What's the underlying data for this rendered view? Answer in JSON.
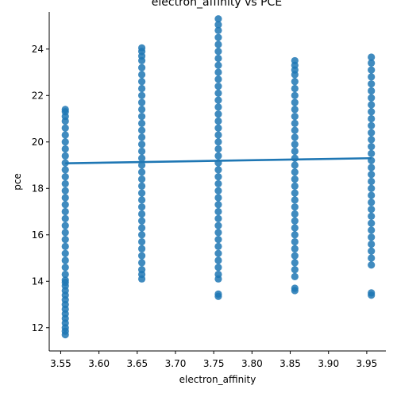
{
  "chart_data": {
    "type": "scatter",
    "title": "electron_affinity vs PCE",
    "xlabel": "electron_affinity",
    "ylabel": "pce",
    "xlim": [
      3.535,
      3.975
    ],
    "ylim": [
      11.0,
      25.6
    ],
    "x_ticks": [
      "3.55",
      "3.60",
      "3.65",
      "3.70",
      "3.75",
      "3.80",
      "3.85",
      "3.90",
      "3.95"
    ],
    "y_ticks": [
      "12",
      "14",
      "16",
      "18",
      "20",
      "22",
      "24"
    ],
    "grid": false,
    "color": "#1f77b4",
    "series": [
      {
        "x": 3.556,
        "y": [
          11.7,
          11.85,
          12.0,
          12.2,
          12.4,
          12.6,
          12.8,
          13.0,
          13.2,
          13.4,
          13.6,
          13.8,
          13.95,
          14.05,
          14.3,
          14.6,
          14.9,
          15.2,
          15.5,
          15.8,
          16.1,
          16.4,
          16.7,
          17.0,
          17.3,
          17.6,
          17.9,
          18.2,
          18.5,
          18.8,
          19.1,
          19.4,
          19.7,
          20.0,
          20.3,
          20.6,
          20.9,
          21.1,
          21.3,
          21.4
        ]
      },
      {
        "x": 3.656,
        "y": [
          14.1,
          14.3,
          14.5,
          14.8,
          15.1,
          15.4,
          15.7,
          16.0,
          16.3,
          16.6,
          16.9,
          17.2,
          17.5,
          17.8,
          18.1,
          18.4,
          18.7,
          19.0,
          19.3,
          19.6,
          19.9,
          20.2,
          20.5,
          20.8,
          21.1,
          21.4,
          21.7,
          22.0,
          22.3,
          22.6,
          22.9,
          23.2,
          23.5,
          23.7,
          23.9,
          24.05
        ]
      },
      {
        "x": 3.756,
        "y": [
          13.35,
          13.45,
          14.1,
          14.3,
          14.6,
          14.9,
          15.2,
          15.5,
          15.8,
          16.1,
          16.4,
          16.7,
          17.0,
          17.3,
          17.6,
          17.9,
          18.2,
          18.5,
          18.8,
          19.1,
          19.4,
          19.7,
          20.0,
          20.3,
          20.6,
          20.9,
          21.2,
          21.5,
          21.8,
          22.1,
          22.4,
          22.7,
          23.0,
          23.3,
          23.6,
          23.9,
          24.2,
          24.5,
          24.8,
          25.05,
          25.3
        ]
      },
      {
        "x": 3.856,
        "y": [
          13.6,
          13.7,
          14.2,
          14.5,
          14.8,
          15.1,
          15.4,
          15.7,
          16.0,
          16.3,
          16.6,
          16.9,
          17.2,
          17.5,
          17.8,
          18.1,
          18.4,
          18.7,
          19.0,
          19.3,
          19.6,
          19.9,
          20.2,
          20.5,
          20.8,
          21.1,
          21.4,
          21.7,
          22.0,
          22.3,
          22.6,
          22.9,
          23.1,
          23.3,
          23.5
        ]
      },
      {
        "x": 3.956,
        "y": [
          13.4,
          13.5,
          14.7,
          15.0,
          15.3,
          15.6,
          15.9,
          16.2,
          16.5,
          16.8,
          17.1,
          17.4,
          17.7,
          18.0,
          18.3,
          18.6,
          18.9,
          19.2,
          19.5,
          19.8,
          20.1,
          20.4,
          20.7,
          21.0,
          21.3,
          21.6,
          21.9,
          22.2,
          22.5,
          22.8,
          23.1,
          23.4,
          23.65
        ]
      }
    ],
    "fit_line": {
      "x": [
        3.556,
        3.956
      ],
      "y": [
        19.08,
        19.3
      ]
    }
  }
}
